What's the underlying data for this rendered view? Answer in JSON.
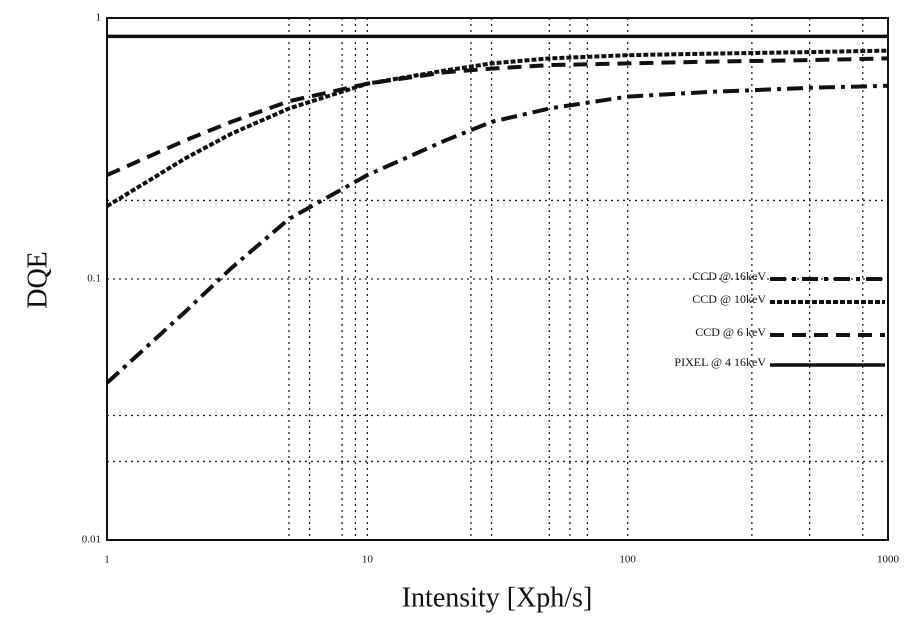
{
  "chart_data": {
    "type": "line",
    "x_label": "Intensity [Xph/s]",
    "y_label": "DQE",
    "x": [
      1,
      2,
      3,
      5,
      10,
      20,
      30,
      50,
      100,
      200,
      500,
      1000
    ],
    "series": [
      {
        "name": "CCD @ 16keV",
        "color": "#111111",
        "line_style": "dash-dot",
        "values": [
          0.04,
          0.075,
          0.11,
          0.17,
          0.25,
          0.34,
          0.4,
          0.45,
          0.5,
          0.52,
          0.54,
          0.55
        ]
      },
      {
        "name": "CCD @ 10keV",
        "color": "#111111",
        "line_style": "dotted-dash",
        "values": [
          0.19,
          0.29,
          0.36,
          0.45,
          0.56,
          0.63,
          0.67,
          0.7,
          0.72,
          0.73,
          0.74,
          0.75
        ]
      },
      {
        "name": "CCD @ 6 keV",
        "color": "#111111",
        "line_style": "dashed",
        "values": [
          0.25,
          0.34,
          0.4,
          0.48,
          0.56,
          0.62,
          0.64,
          0.66,
          0.67,
          0.68,
          0.69,
          0.7
        ]
      },
      {
        "name": "PIXEL @ 4  16keV",
        "color": "#111111",
        "line_style": "solid",
        "values": [
          0.85,
          0.85,
          0.85,
          0.85,
          0.85,
          0.85,
          0.85,
          0.85,
          0.85,
          0.85,
          0.85,
          0.85
        ]
      }
    ],
    "xlim": [
      1,
      1000
    ],
    "ylim": [
      0.01,
      1
    ],
    "xticks": [
      1,
      10,
      100,
      1000
    ],
    "yticks": [
      0.01,
      0.1,
      1
    ],
    "x_log": true,
    "y_log": true,
    "grid": true,
    "x_minor_grid": [
      5,
      6,
      8,
      9,
      25,
      30,
      50,
      60,
      70,
      300,
      500,
      800
    ],
    "y_minor_grid": [
      0.2,
      0.03,
      0.02
    ],
    "legend": "lower-right"
  }
}
